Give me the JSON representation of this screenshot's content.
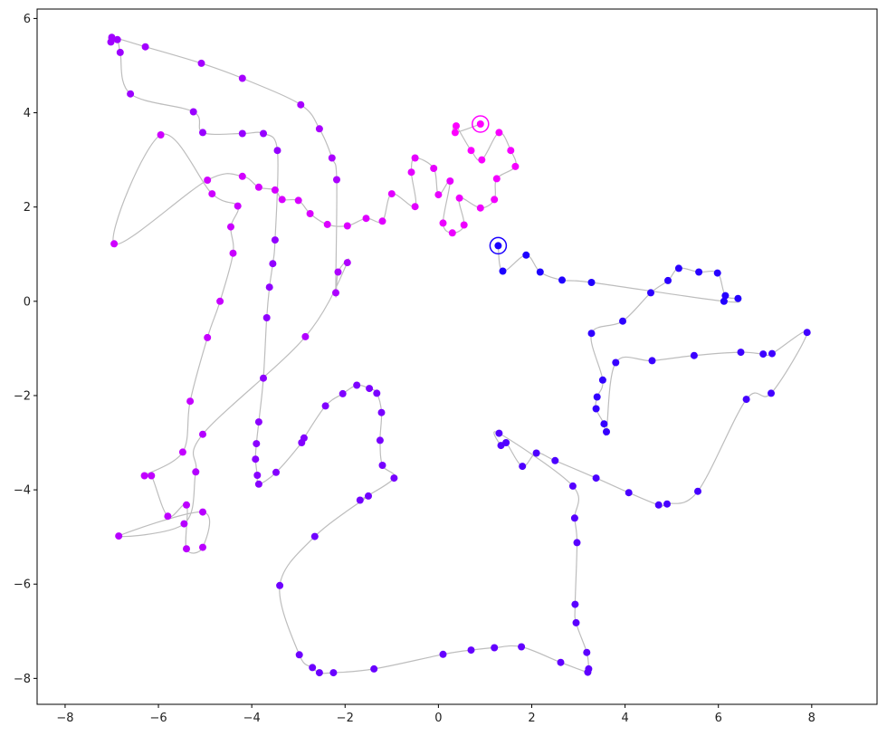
{
  "chart_data": {
    "type": "scatter",
    "title": "",
    "xlabel": "",
    "ylabel": "",
    "xlim": [
      -8.6,
      9.4
    ],
    "ylim": [
      -8.55,
      6.2
    ],
    "xticks": [
      -8,
      -6,
      -4,
      -2,
      0,
      2,
      4,
      6,
      8
    ],
    "yticks": [
      -8,
      -6,
      -4,
      -2,
      0,
      2,
      4,
      6
    ],
    "grid": false,
    "legend": "none",
    "line_color": "#bdbdbd",
    "color_start": "#1a00ff",
    "color_end": "#ff00ff",
    "start_point": [
      1.28,
      1.18
    ],
    "end_point": [
      0.9,
      3.76
    ],
    "points": [
      [
        1.28,
        1.18
      ],
      [
        1.38,
        0.64
      ],
      [
        1.88,
        0.98
      ],
      [
        2.18,
        0.62
      ],
      [
        2.65,
        0.45
      ],
      [
        3.28,
        0.4
      ],
      [
        6.12,
        0.0
      ],
      [
        6.42,
        0.06
      ],
      [
        6.15,
        0.12
      ],
      [
        5.98,
        0.6
      ],
      [
        5.58,
        0.62
      ],
      [
        5.15,
        0.7
      ],
      [
        4.92,
        0.44
      ],
      [
        4.55,
        0.18
      ],
      [
        3.95,
        -0.42
      ],
      [
        3.28,
        -0.68
      ],
      [
        3.52,
        -1.67
      ],
      [
        3.4,
        -2.03
      ],
      [
        3.38,
        -2.28
      ],
      [
        3.55,
        -2.6
      ],
      [
        3.6,
        -2.77
      ],
      [
        3.8,
        -1.3
      ],
      [
        4.58,
        -1.26
      ],
      [
        5.48,
        -1.15
      ],
      [
        6.48,
        -1.08
      ],
      [
        6.96,
        -1.12
      ],
      [
        7.15,
        -1.11
      ],
      [
        7.9,
        -0.66
      ],
      [
        7.13,
        -1.95
      ],
      [
        6.6,
        -2.08
      ],
      [
        5.56,
        -4.03
      ],
      [
        4.9,
        -4.3
      ],
      [
        4.72,
        -4.32
      ],
      [
        4.08,
        -4.06
      ],
      [
        3.38,
        -3.75
      ],
      [
        2.5,
        -3.38
      ],
      [
        2.1,
        -3.22
      ],
      [
        1.8,
        -3.5
      ],
      [
        1.45,
        -3.0
      ],
      [
        1.34,
        -3.06
      ],
      [
        1.3,
        -2.8
      ],
      [
        2.88,
        -3.92
      ],
      [
        2.92,
        -4.6
      ],
      [
        2.97,
        -5.12
      ],
      [
        2.93,
        -6.43
      ],
      [
        2.95,
        -6.82
      ],
      [
        3.18,
        -7.45
      ],
      [
        3.22,
        -7.8
      ],
      [
        3.2,
        -7.87
      ],
      [
        2.62,
        -7.66
      ],
      [
        1.78,
        -7.33
      ],
      [
        1.2,
        -7.35
      ],
      [
        0.7,
        -7.4
      ],
      [
        0.1,
        -7.49
      ],
      [
        -1.38,
        -7.8
      ],
      [
        -2.25,
        -7.88
      ],
      [
        -2.55,
        -7.88
      ],
      [
        -2.7,
        -7.77
      ],
      [
        -2.98,
        -7.5
      ],
      [
        -3.4,
        -6.03
      ],
      [
        -2.65,
        -4.99
      ],
      [
        -1.5,
        -4.13
      ],
      [
        -1.68,
        -4.22
      ],
      [
        -0.95,
        -3.75
      ],
      [
        -1.2,
        -3.48
      ],
      [
        -1.25,
        -2.95
      ],
      [
        -1.22,
        -2.36
      ],
      [
        -1.32,
        -1.95
      ],
      [
        -1.48,
        -1.85
      ],
      [
        -1.75,
        -1.78
      ],
      [
        -2.05,
        -1.96
      ],
      [
        -2.42,
        -2.22
      ],
      [
        -2.88,
        -2.9
      ],
      [
        -2.93,
        -3.0
      ],
      [
        -3.48,
        -3.63
      ],
      [
        -3.85,
        -3.88
      ],
      [
        -3.88,
        -3.69
      ],
      [
        -3.92,
        -3.35
      ],
      [
        -3.9,
        -3.02
      ],
      [
        -3.85,
        -2.56
      ],
      [
        -3.75,
        -1.63
      ],
      [
        -3.68,
        -0.35
      ],
      [
        -3.62,
        0.3
      ],
      [
        -3.55,
        0.8
      ],
      [
        -3.5,
        1.3
      ],
      [
        -3.45,
        3.2
      ],
      [
        -3.75,
        3.56
      ],
      [
        -4.2,
        3.56
      ],
      [
        -5.05,
        3.58
      ],
      [
        -5.25,
        4.02
      ],
      [
        -6.6,
        4.4
      ],
      [
        -6.82,
        5.28
      ],
      [
        -6.88,
        5.55
      ],
      [
        -7.02,
        5.5
      ],
      [
        -7.0,
        5.6
      ],
      [
        -6.28,
        5.4
      ],
      [
        -5.08,
        5.05
      ],
      [
        -4.2,
        4.73
      ],
      [
        -2.95,
        4.17
      ],
      [
        -2.55,
        3.66
      ],
      [
        -2.28,
        3.04
      ],
      [
        -2.18,
        2.58
      ],
      [
        -2.2,
        0.18
      ],
      [
        -2.15,
        0.62
      ],
      [
        -1.95,
        0.82
      ],
      [
        -2.85,
        -0.75
      ],
      [
        -5.05,
        -2.82
      ],
      [
        -5.2,
        -3.62
      ],
      [
        -5.45,
        -4.72
      ],
      [
        -6.85,
        -4.98
      ],
      [
        -5.05,
        -4.47
      ],
      [
        -5.05,
        -5.22
      ],
      [
        -5.4,
        -5.25
      ],
      [
        -5.4,
        -4.32
      ],
      [
        -5.8,
        -4.56
      ],
      [
        -6.15,
        -3.7
      ],
      [
        -6.3,
        -3.7
      ],
      [
        -5.48,
        -3.2
      ],
      [
        -5.32,
        -2.12
      ],
      [
        -4.95,
        -0.77
      ],
      [
        -4.68,
        0.0
      ],
      [
        -4.4,
        1.02
      ],
      [
        -4.45,
        1.58
      ],
      [
        -4.3,
        2.02
      ],
      [
        -4.85,
        2.28
      ],
      [
        -5.95,
        3.53
      ],
      [
        -6.95,
        1.22
      ],
      [
        -4.95,
        2.57
      ],
      [
        -4.2,
        2.65
      ],
      [
        -3.85,
        2.42
      ],
      [
        -3.5,
        2.36
      ],
      [
        -3.35,
        2.16
      ],
      [
        -3.0,
        2.14
      ],
      [
        -2.75,
        1.86
      ],
      [
        -2.38,
        1.63
      ],
      [
        -1.95,
        1.6
      ],
      [
        -1.55,
        1.76
      ],
      [
        -1.2,
        1.7
      ],
      [
        -1.0,
        2.28
      ],
      [
        -0.5,
        2.01
      ],
      [
        -0.58,
        2.74
      ],
      [
        -0.5,
        3.04
      ],
      [
        -0.1,
        2.82
      ],
      [
        0.0,
        2.26
      ],
      [
        0.25,
        2.55
      ],
      [
        0.1,
        1.66
      ],
      [
        0.3,
        1.45
      ],
      [
        0.55,
        1.62
      ],
      [
        0.45,
        2.19
      ],
      [
        0.9,
        1.98
      ],
      [
        1.2,
        2.16
      ],
      [
        1.25,
        2.6
      ],
      [
        1.65,
        2.86
      ],
      [
        1.55,
        3.2
      ],
      [
        1.3,
        3.58
      ],
      [
        0.93,
        3.0
      ],
      [
        0.7,
        3.2
      ],
      [
        0.38,
        3.72
      ],
      [
        0.36,
        3.58
      ],
      [
        0.9,
        3.76
      ]
    ]
  }
}
